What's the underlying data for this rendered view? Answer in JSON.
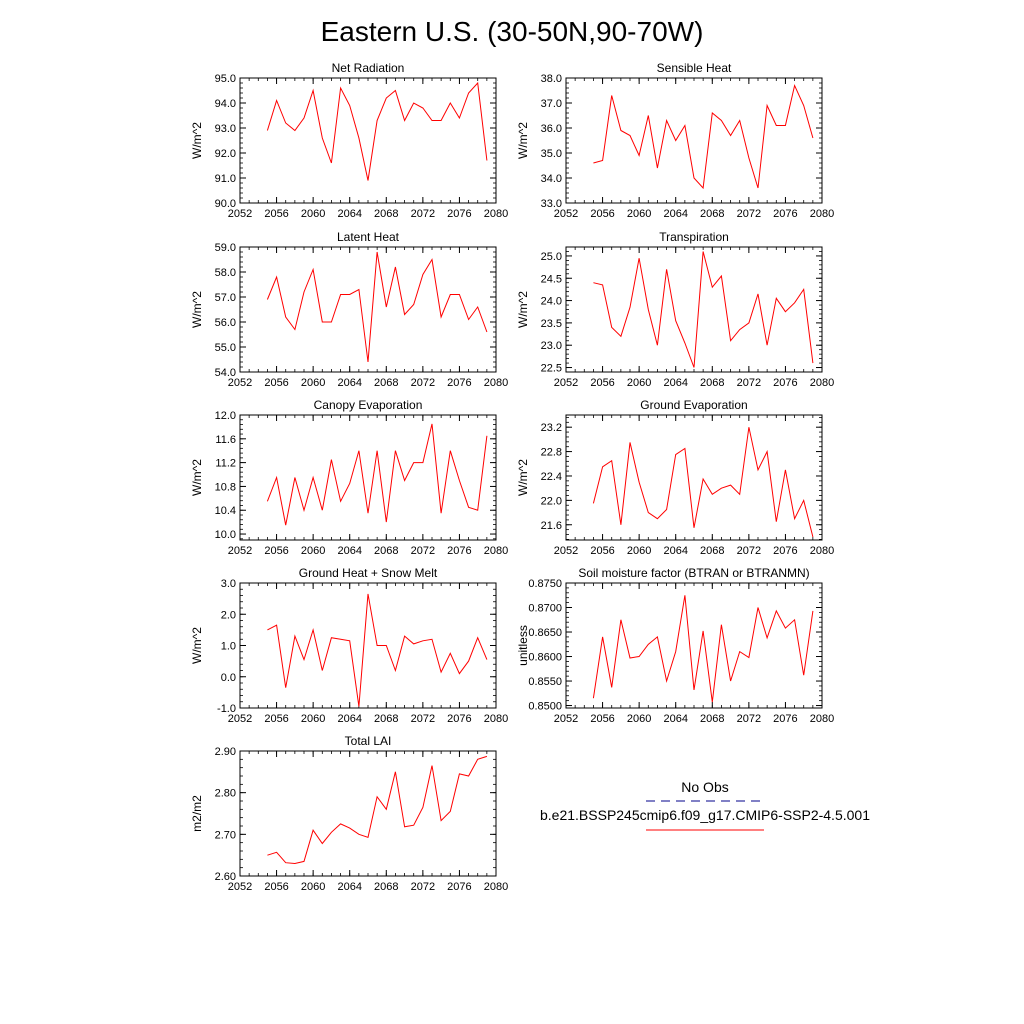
{
  "title": "Eastern U.S. (30-50N,90-70W)",
  "colors": {
    "model": "#ff0000",
    "obs": "#00008b",
    "axis": "#000000"
  },
  "legend": {
    "obs_label": "No Obs",
    "model_label": "b.e21.BSSP245cmip6.f09_g17.CMIP6-SSP2-4.5.001"
  },
  "chart_data": [
    {
      "type": "line",
      "title": "Net Radiation",
      "ylabel": "W/m^2",
      "xlim": [
        2052,
        2080
      ],
      "ylim": [
        90.0,
        95.0
      ],
      "xticks": [
        2052,
        2056,
        2060,
        2064,
        2068,
        2072,
        2076,
        2080
      ],
      "yticks": [
        "90.0",
        "91.0",
        "92.0",
        "93.0",
        "94.0",
        "95.0"
      ],
      "x": [
        2055,
        2056,
        2057,
        2058,
        2059,
        2060,
        2061,
        2062,
        2063,
        2064,
        2065,
        2066,
        2067,
        2068,
        2069,
        2070,
        2071,
        2072,
        2073,
        2074,
        2075,
        2076,
        2077,
        2078,
        2079
      ],
      "series": [
        {
          "values": [
            92.9,
            94.1,
            93.2,
            92.9,
            93.4,
            94.5,
            92.6,
            91.6,
            94.6,
            93.9,
            92.6,
            90.9,
            93.3,
            94.2,
            94.5,
            93.3,
            94.0,
            93.8,
            93.3,
            93.3,
            94.0,
            93.4,
            94.4,
            94.8,
            91.7
          ]
        }
      ]
    },
    {
      "type": "line",
      "title": "Sensible Heat",
      "ylabel": "W/m^2",
      "xlim": [
        2052,
        2080
      ],
      "ylim": [
        33.0,
        38.0
      ],
      "xticks": [
        2052,
        2056,
        2060,
        2064,
        2068,
        2072,
        2076,
        2080
      ],
      "yticks": [
        "33.0",
        "34.0",
        "35.0",
        "36.0",
        "37.0",
        "38.0"
      ],
      "x": [
        2055,
        2056,
        2057,
        2058,
        2059,
        2060,
        2061,
        2062,
        2063,
        2064,
        2065,
        2066,
        2067,
        2068,
        2069,
        2070,
        2071,
        2072,
        2073,
        2074,
        2075,
        2076,
        2077,
        2078,
        2079
      ],
      "series": [
        {
          "values": [
            34.6,
            34.7,
            37.3,
            35.9,
            35.7,
            34.9,
            36.5,
            34.4,
            36.3,
            35.5,
            36.1,
            34.0,
            33.6,
            36.6,
            36.3,
            35.7,
            36.3,
            34.8,
            33.6,
            36.9,
            36.1,
            36.1,
            37.7,
            36.9,
            35.6
          ]
        }
      ]
    },
    {
      "type": "line",
      "title": "Latent Heat",
      "ylabel": "W/m^2",
      "xlim": [
        2052,
        2080
      ],
      "ylim": [
        54.0,
        59.0
      ],
      "xticks": [
        2052,
        2056,
        2060,
        2064,
        2068,
        2072,
        2076,
        2080
      ],
      "yticks": [
        "54.0",
        "55.0",
        "56.0",
        "57.0",
        "58.0",
        "59.0"
      ],
      "x": [
        2055,
        2056,
        2057,
        2058,
        2059,
        2060,
        2061,
        2062,
        2063,
        2064,
        2065,
        2066,
        2067,
        2068,
        2069,
        2070,
        2071,
        2072,
        2073,
        2074,
        2075,
        2076,
        2077,
        2078,
        2079
      ],
      "series": [
        {
          "values": [
            56.9,
            57.8,
            56.2,
            55.7,
            57.2,
            58.1,
            56.0,
            56.0,
            57.1,
            57.1,
            57.3,
            54.4,
            58.8,
            56.6,
            58.2,
            56.3,
            56.7,
            57.9,
            58.5,
            56.2,
            57.1,
            57.1,
            56.1,
            56.6,
            55.6
          ]
        }
      ]
    },
    {
      "type": "line",
      "title": "Transpiration",
      "ylabel": "W/m^2",
      "xlim": [
        2052,
        2080
      ],
      "ylim": [
        22.4,
        25.2
      ],
      "xticks": [
        2052,
        2056,
        2060,
        2064,
        2068,
        2072,
        2076,
        2080
      ],
      "yticks": [
        "22.5",
        "23.0",
        "23.5",
        "24.0",
        "24.5",
        "25.0"
      ],
      "x": [
        2055,
        2056,
        2057,
        2058,
        2059,
        2060,
        2061,
        2062,
        2063,
        2064,
        2065,
        2066,
        2067,
        2068,
        2069,
        2070,
        2071,
        2072,
        2073,
        2074,
        2075,
        2076,
        2077,
        2078,
        2079
      ],
      "series": [
        {
          "values": [
            24.4,
            24.35,
            23.4,
            23.2,
            23.85,
            24.95,
            23.8,
            23.0,
            24.7,
            23.55,
            23.05,
            22.5,
            25.1,
            24.3,
            24.55,
            23.1,
            23.35,
            23.5,
            24.15,
            23.0,
            24.05,
            23.75,
            23.95,
            24.25,
            22.6
          ]
        }
      ]
    },
    {
      "type": "line",
      "title": "Canopy Evaporation",
      "ylabel": "W/m^2",
      "xlim": [
        2052,
        2080
      ],
      "ylim": [
        9.9,
        12.0
      ],
      "xticks": [
        2052,
        2056,
        2060,
        2064,
        2068,
        2072,
        2076,
        2080
      ],
      "yticks": [
        "10.0",
        "10.4",
        "10.8",
        "11.2",
        "11.6",
        "12.0"
      ],
      "x": [
        2055,
        2056,
        2057,
        2058,
        2059,
        2060,
        2061,
        2062,
        2063,
        2064,
        2065,
        2066,
        2067,
        2068,
        2069,
        2070,
        2071,
        2072,
        2073,
        2074,
        2075,
        2076,
        2077,
        2078,
        2079
      ],
      "series": [
        {
          "values": [
            10.55,
            10.95,
            10.15,
            10.95,
            10.4,
            10.95,
            10.4,
            11.25,
            10.55,
            10.85,
            11.4,
            10.35,
            11.4,
            10.2,
            11.4,
            10.9,
            11.2,
            11.2,
            11.85,
            10.35,
            11.4,
            10.9,
            10.45,
            10.4,
            11.65
          ]
        }
      ]
    },
    {
      "type": "line",
      "title": "Ground Evaporation",
      "ylabel": "W/m^2",
      "xlim": [
        2052,
        2080
      ],
      "ylim": [
        21.35,
        23.4
      ],
      "xticks": [
        2052,
        2056,
        2060,
        2064,
        2068,
        2072,
        2076,
        2080
      ],
      "yticks": [
        "21.6",
        "22.0",
        "22.4",
        "22.8",
        "23.2"
      ],
      "x": [
        2055,
        2056,
        2057,
        2058,
        2059,
        2060,
        2061,
        2062,
        2063,
        2064,
        2065,
        2066,
        2067,
        2068,
        2069,
        2070,
        2071,
        2072,
        2073,
        2074,
        2075,
        2076,
        2077,
        2078,
        2079
      ],
      "series": [
        {
          "values": [
            21.95,
            22.55,
            22.65,
            21.6,
            22.95,
            22.3,
            21.8,
            21.7,
            21.85,
            22.75,
            22.85,
            21.55,
            22.35,
            22.1,
            22.2,
            22.25,
            22.1,
            23.2,
            22.5,
            22.8,
            21.65,
            22.5,
            21.7,
            22.0,
            21.4
          ]
        }
      ]
    },
    {
      "type": "line",
      "title": "Ground Heat + Snow Melt",
      "ylabel": "W/m^2",
      "xlim": [
        2052,
        2080
      ],
      "ylim": [
        -1.0,
        3.0
      ],
      "xticks": [
        2052,
        2056,
        2060,
        2064,
        2068,
        2072,
        2076,
        2080
      ],
      "yticks": [
        "-1.0",
        "0.0",
        "1.0",
        "2.0",
        "3.0"
      ],
      "x": [
        2055,
        2056,
        2057,
        2058,
        2059,
        2060,
        2061,
        2062,
        2063,
        2064,
        2065,
        2066,
        2067,
        2068,
        2069,
        2070,
        2071,
        2072,
        2073,
        2074,
        2075,
        2076,
        2077,
        2078,
        2079
      ],
      "series": [
        {
          "values": [
            1.5,
            1.65,
            -0.35,
            1.3,
            0.55,
            1.5,
            0.2,
            1.25,
            1.2,
            1.15,
            -0.95,
            2.65,
            1.0,
            1.0,
            0.2,
            1.3,
            1.05,
            1.15,
            1.2,
            0.15,
            0.75,
            0.1,
            0.5,
            1.25,
            0.55
          ]
        }
      ]
    },
    {
      "type": "line",
      "title": "Soil moisture factor (BTRAN or BTRANMN)",
      "ylabel": "unitless",
      "xlim": [
        2052,
        2080
      ],
      "ylim": [
        0.8495,
        0.875
      ],
      "xticks": [
        2052,
        2056,
        2060,
        2064,
        2068,
        2072,
        2076,
        2080
      ],
      "yticks": [
        "0.8500",
        "0.8550",
        "0.8600",
        "0.8650",
        "0.8700",
        "0.8750"
      ],
      "x": [
        2055,
        2056,
        2057,
        2058,
        2059,
        2060,
        2061,
        2062,
        2063,
        2064,
        2065,
        2066,
        2067,
        2068,
        2069,
        2070,
        2071,
        2072,
        2073,
        2074,
        2075,
        2076,
        2077,
        2078,
        2079
      ],
      "series": [
        {
          "values": [
            0.8515,
            0.864,
            0.8537,
            0.8675,
            0.8597,
            0.86,
            0.8625,
            0.864,
            0.855,
            0.861,
            0.8725,
            0.8532,
            0.8652,
            0.8507,
            0.8665,
            0.855,
            0.861,
            0.8598,
            0.87,
            0.8638,
            0.8693,
            0.8658,
            0.8675,
            0.8562,
            0.8693
          ]
        }
      ]
    },
    {
      "type": "line",
      "title": "Total LAI",
      "ylabel": "m2/m2",
      "xlim": [
        2052,
        2080
      ],
      "ylim": [
        2.6,
        2.9
      ],
      "xticks": [
        2052,
        2056,
        2060,
        2064,
        2068,
        2072,
        2076,
        2080
      ],
      "yticks": [
        "2.60",
        "2.70",
        "2.80",
        "2.90"
      ],
      "x": [
        2055,
        2056,
        2057,
        2058,
        2059,
        2060,
        2061,
        2062,
        2063,
        2064,
        2065,
        2066,
        2067,
        2068,
        2069,
        2070,
        2071,
        2072,
        2073,
        2074,
        2075,
        2076,
        2077,
        2078,
        2079
      ],
      "series": [
        {
          "values": [
            2.65,
            2.657,
            2.632,
            2.63,
            2.635,
            2.71,
            2.678,
            2.705,
            2.725,
            2.715,
            2.7,
            2.693,
            2.79,
            2.76,
            2.85,
            2.718,
            2.722,
            2.765,
            2.865,
            2.733,
            2.755,
            2.845,
            2.84,
            2.88,
            2.887
          ]
        }
      ]
    }
  ]
}
